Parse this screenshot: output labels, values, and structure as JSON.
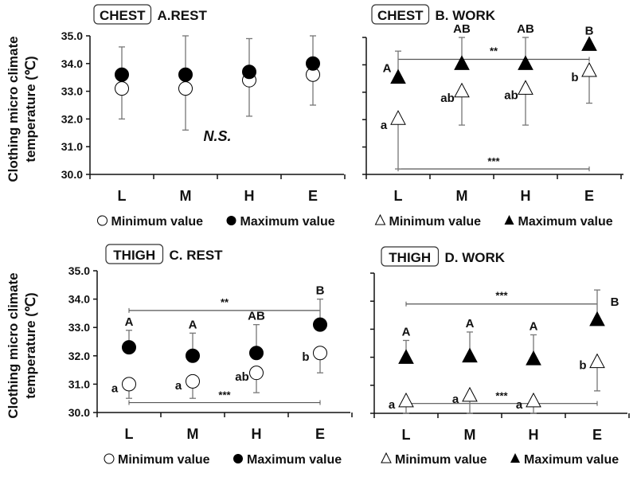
{
  "chart_data": [
    {
      "type": "scatter",
      "site": "CHEST",
      "title": "A.REST",
      "ylabel": "Clothing micro climate temperature (℃)",
      "ylim": [
        30.0,
        35.0
      ],
      "yticks": [
        "30.0",
        "31.0",
        "32.0",
        "33.0",
        "34.0",
        "35.0"
      ],
      "categories": [
        "L",
        "M",
        "H",
        "E"
      ],
      "marker": "circle",
      "series": [
        {
          "name": "Minimum value",
          "values": [
            33.1,
            33.1,
            33.4,
            33.6
          ],
          "error_low": [
            32.0,
            31.6,
            32.1,
            32.5
          ],
          "labels": [
            "",
            "",
            "",
            ""
          ]
        },
        {
          "name": "Maximum value",
          "values": [
            33.6,
            33.6,
            33.7,
            34.0
          ],
          "error_high": [
            34.6,
            35.0,
            34.9,
            35.0
          ],
          "labels": [
            "",
            "",
            "",
            ""
          ]
        }
      ],
      "annotations": [
        {
          "text": "N.S."
        }
      ],
      "brackets": []
    },
    {
      "type": "scatter",
      "site": "CHEST",
      "title": "B. WORK",
      "ylim": [
        30.0,
        35.0
      ],
      "categories": [
        "L",
        "M",
        "H",
        "E"
      ],
      "marker": "triangle",
      "series": [
        {
          "name": "Minimum value",
          "values": [
            32.0,
            33.0,
            33.1,
            33.75
          ],
          "error_low": [
            30.2,
            31.8,
            31.8,
            32.6
          ],
          "labels": [
            "a",
            "ab",
            "ab",
            "b"
          ]
        },
        {
          "name": "Maximum value",
          "values": [
            33.5,
            34.0,
            34.0,
            34.7
          ],
          "error_high": [
            34.5,
            35.0,
            35.0,
            null
          ],
          "labels": [
            "A",
            "AB",
            "AB",
            "B"
          ]
        }
      ],
      "brackets": [
        {
          "text": "**",
          "y": 34.2
        },
        {
          "text": "***",
          "y": 30.2
        }
      ]
    },
    {
      "type": "scatter",
      "site": "THIGH",
      "title": "C. REST",
      "ylabel": "Clothing micro climate temperature (℃)",
      "ylim": [
        30.0,
        35.0
      ],
      "yticks": [
        "30.0",
        "31.0",
        "32.0",
        "33.0",
        "34.0",
        "35.0"
      ],
      "categories": [
        "L",
        "M",
        "H",
        "E"
      ],
      "marker": "circle",
      "series": [
        {
          "name": "Minimum value",
          "values": [
            31.0,
            31.1,
            31.4,
            32.1
          ],
          "error_low": [
            30.5,
            30.5,
            30.7,
            31.4
          ],
          "labels": [
            "a",
            "a",
            "ab",
            "b"
          ]
        },
        {
          "name": "Maximum value",
          "values": [
            32.3,
            32.0,
            32.1,
            33.1
          ],
          "error_high": [
            32.9,
            32.8,
            33.1,
            34.0
          ],
          "labels": [
            "A",
            "A",
            "AB",
            "B"
          ]
        }
      ],
      "brackets": [
        {
          "text": "**",
          "y": 33.6
        },
        {
          "text": "***",
          "y": 30.35
        }
      ]
    },
    {
      "type": "scatter",
      "site": "THIGH",
      "title": "D. WORK",
      "ylim": [
        30.0,
        35.0
      ],
      "categories": [
        "L",
        "M",
        "H",
        "E"
      ],
      "marker": "triangle",
      "series": [
        {
          "name": "Minimum value",
          "values": [
            30.4,
            30.6,
            30.4,
            31.8
          ],
          "error_low": [
            30.0,
            30.0,
            30.0,
            30.8
          ],
          "labels": [
            "a",
            "a",
            "a",
            "b"
          ]
        },
        {
          "name": "Maximum value",
          "values": [
            31.95,
            32.0,
            31.9,
            33.3
          ],
          "error_high": [
            32.6,
            32.9,
            32.8,
            34.4
          ],
          "labels": [
            "A",
            "A",
            "A",
            "B"
          ]
        }
      ],
      "brackets": [
        {
          "text": "***",
          "y": 33.9
        },
        {
          "text": "***",
          "y": 30.35
        }
      ]
    }
  ],
  "colors": {
    "min_fill": "#ffffff",
    "max_fill": "#000000",
    "errorbar": "#777777",
    "axis": "#111111"
  }
}
